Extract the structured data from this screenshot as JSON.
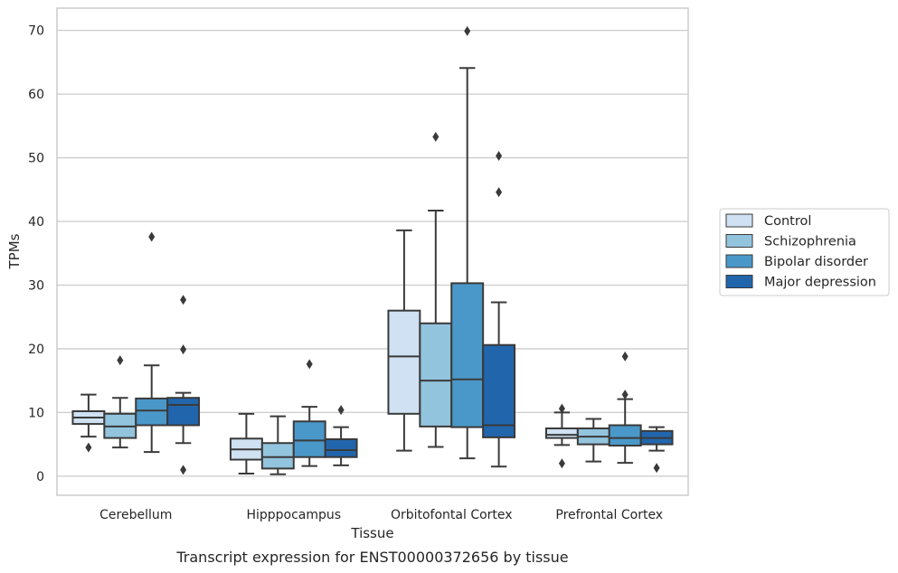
{
  "chart_data": {
    "type": "box",
    "xlabel": "Tissue",
    "ylabel": "TPMs",
    "caption": "Transcript expression for ENST00000372656 by tissue",
    "ylim": [
      -3,
      73.5
    ],
    "yticks": [
      0,
      10,
      20,
      30,
      40,
      50,
      60,
      70
    ],
    "grid": true,
    "legend_position": "center-right",
    "categories": [
      "Cerebellum",
      "Hipppocampus",
      "Orbitofontal Cortex",
      "Prefrontal Cortex"
    ],
    "series": [
      {
        "name": "Control",
        "color": "#cfe1f2",
        "boxes": [
          {
            "whislo": 6.2,
            "q1": 8.2,
            "med": 9.2,
            "q3": 10.2,
            "whishi": 12.8,
            "fliers": [
              4.5
            ]
          },
          {
            "whislo": 0.4,
            "q1": 2.6,
            "med": 4.2,
            "q3": 5.9,
            "whishi": 9.8,
            "fliers": []
          },
          {
            "whislo": 4.0,
            "q1": 9.8,
            "med": 18.8,
            "q3": 26.0,
            "whishi": 38.6,
            "fliers": []
          },
          {
            "whislo": 4.9,
            "q1": 6.0,
            "med": 6.5,
            "q3": 7.5,
            "whishi": 10.0,
            "fliers": [
              2.0,
              10.6
            ]
          }
        ]
      },
      {
        "name": "Schizophrenia",
        "color": "#93c4de",
        "boxes": [
          {
            "whislo": 4.5,
            "q1": 6.0,
            "med": 7.8,
            "q3": 9.8,
            "whishi": 12.3,
            "fliers": [
              18.2
            ]
          },
          {
            "whislo": 0.3,
            "q1": 1.2,
            "med": 3.0,
            "q3": 5.2,
            "whishi": 9.4,
            "fliers": []
          },
          {
            "whislo": 4.6,
            "q1": 7.8,
            "med": 15.0,
            "q3": 24.0,
            "whishi": 41.7,
            "fliers": [
              53.3
            ]
          },
          {
            "whislo": 2.3,
            "q1": 5.0,
            "med": 6.2,
            "q3": 7.5,
            "whishi": 9.0,
            "fliers": []
          }
        ]
      },
      {
        "name": "Bipolar disorder",
        "color": "#4a98c9",
        "boxes": [
          {
            "whislo": 3.8,
            "q1": 8.0,
            "med": 10.3,
            "q3": 12.2,
            "whishi": 17.4,
            "fliers": [
              37.6
            ]
          },
          {
            "whislo": 1.6,
            "q1": 3.0,
            "med": 5.6,
            "q3": 8.6,
            "whishi": 10.9,
            "fliers": [
              17.6
            ]
          },
          {
            "whislo": 2.8,
            "q1": 7.7,
            "med": 15.2,
            "q3": 30.3,
            "whishi": 64.1,
            "fliers": [
              69.9
            ]
          },
          {
            "whislo": 2.1,
            "q1": 4.8,
            "med": 6.0,
            "q3": 8.0,
            "whishi": 12.1,
            "fliers": [
              12.8,
              18.8
            ]
          }
        ]
      },
      {
        "name": "Major depression",
        "color": "#2166ac",
        "boxes": [
          {
            "whislo": 5.2,
            "q1": 8.0,
            "med": 11.2,
            "q3": 12.3,
            "whishi": 13.1,
            "fliers": [
              1.0,
              19.9,
              27.7
            ]
          },
          {
            "whislo": 1.7,
            "q1": 3.0,
            "med": 4.1,
            "q3": 5.8,
            "whishi": 7.7,
            "fliers": [
              10.4
            ]
          },
          {
            "whislo": 1.5,
            "q1": 6.1,
            "med": 8.0,
            "q3": 20.6,
            "whishi": 27.3,
            "fliers": [
              44.6,
              50.3
            ]
          },
          {
            "whislo": 4.0,
            "q1": 5.0,
            "med": 6.0,
            "q3": 7.1,
            "whishi": 7.7,
            "fliers": [
              1.3
            ]
          }
        ]
      }
    ]
  }
}
